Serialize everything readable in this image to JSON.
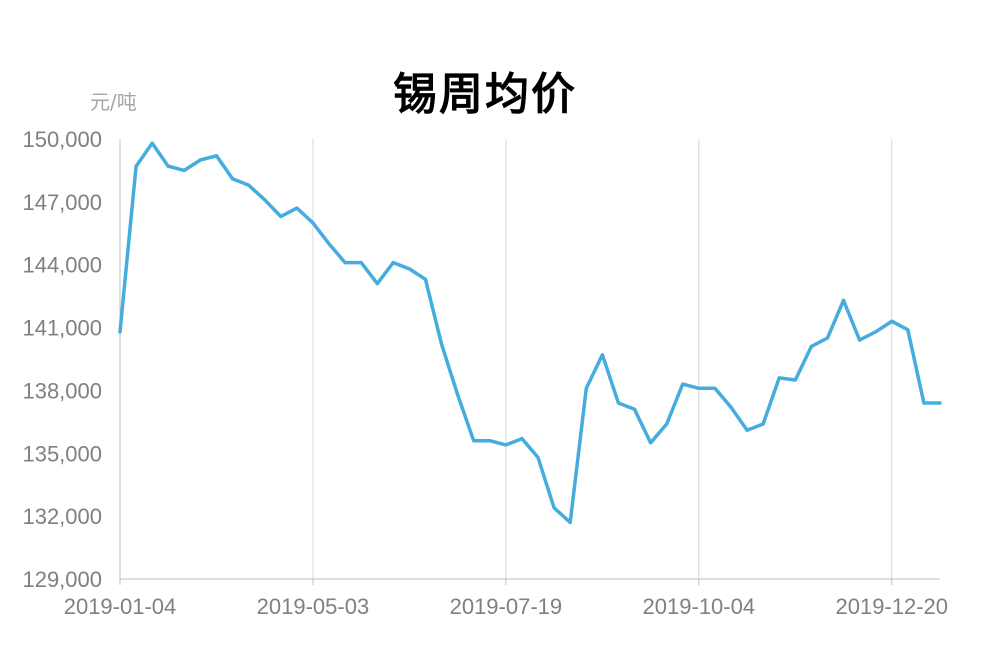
{
  "chart_data": {
    "type": "line",
    "title": "锡周均价",
    "ylabel": "元/吨",
    "xlabel": "",
    "ylim": [
      129000,
      150000
    ],
    "yticks": [
      "150,000",
      "147,000",
      "144,000",
      "141,000",
      "138,000",
      "135,000",
      "132,000",
      "129,000"
    ],
    "xticks": [
      "2019-01-04",
      "2019-05-03",
      "2019-07-19",
      "2019-10-04",
      "2019-12-20"
    ],
    "grid": "vertical",
    "line_color": "#45ADDE",
    "series": [
      {
        "values": [
          140800,
          148700,
          149800,
          148700,
          148500,
          149000,
          149200,
          148100,
          147800,
          147100,
          146300,
          146700,
          146000,
          145000,
          144100,
          144100,
          143100,
          144100,
          143800,
          143300,
          140200,
          137800,
          135600,
          135600,
          135400,
          135700,
          134800,
          132400,
          131700,
          138100,
          139700,
          137400,
          137100,
          135500,
          136400,
          138300,
          138100,
          138100,
          137200,
          136100,
          136400,
          138600,
          138500,
          140100,
          140500,
          142300,
          140400,
          140800,
          141300,
          140900,
          137400,
          137400
        ]
      }
    ]
  }
}
